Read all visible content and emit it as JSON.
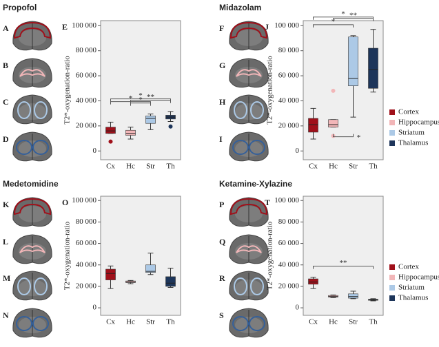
{
  "panels": [
    {
      "title": "Propofol",
      "image_labels": [
        "A",
        "B",
        "C",
        "D"
      ]
    },
    {
      "title": "Midazolam",
      "image_labels": [
        "F",
        "G",
        "H",
        "I"
      ]
    },
    {
      "title": "Medetomidine",
      "image_labels": [
        "K",
        "L",
        "M",
        "N"
      ]
    },
    {
      "title": "Ketamine-Xylazine",
      "image_labels": [
        "P",
        "Q",
        "R",
        "S"
      ]
    }
  ],
  "chart_data": [
    {
      "type": "box",
      "label": "E",
      "ylabel": "T2*-oxygenation-ratio",
      "categories": [
        "Cx",
        "Hc",
        "Str",
        "Th"
      ],
      "colors": [
        "#a0101a",
        "#f2b6b8",
        "#acc9e6",
        "#1d355a"
      ],
      "boxes": [
        {
          "min": 14000,
          "q1": 14000,
          "median": 16000,
          "q3": 19000,
          "max": 23000,
          "outliers": [
            7500
          ]
        },
        {
          "min": 9500,
          "q1": 12500,
          "median": 14000,
          "q3": 16500,
          "max": 19000,
          "outliers": []
        },
        {
          "min": 17000,
          "q1": 22000,
          "median": 26000,
          "q3": 28000,
          "max": 29500,
          "outliers": []
        },
        {
          "min": 23500,
          "q1": 25500,
          "median": 27000,
          "q3": 28500,
          "max": 31500,
          "outliers": [
            19500
          ]
        }
      ],
      "annotations": [
        {
          "pair": [
            0,
            3
          ],
          "label": "*"
        },
        {
          "pair": [
            1,
            3
          ],
          "label": "**"
        },
        {
          "pair": [
            0,
            2
          ],
          "label": "*"
        },
        {
          "pair": [
            1,
            2
          ],
          "label": "*"
        }
      ],
      "ylim": [
        -7000,
        104000
      ],
      "yticks": [
        0,
        {
          "value": 20000,
          "label": "20 000"
        },
        {
          "value": 40000,
          "label": "40 000"
        },
        {
          "value": 60000,
          "label": "60 000"
        },
        {
          "value": 80000,
          "label": "80 000"
        },
        {
          "value": 100000,
          "label": "100 000"
        }
      ]
    },
    {
      "type": "box",
      "label": "J",
      "ylabel": "T2*-oxygenation-ratio",
      "categories": [
        "Cx",
        "Hc",
        "Str",
        "Th"
      ],
      "colors": [
        "#a0101a",
        "#f2b6b8",
        "#acc9e6",
        "#1d355a"
      ],
      "boxes": [
        {
          "min": 9500,
          "q1": 15000,
          "median": 21000,
          "q3": 26000,
          "max": 34000,
          "outliers": []
        },
        {
          "min": 19000,
          "q1": 19000,
          "median": 21000,
          "q3": 25000,
          "max": 25000,
          "outliers": [
            12000,
            48000
          ]
        },
        {
          "min": 27000,
          "q1": 52000,
          "median": 58000,
          "q3": 91000,
          "max": 92000,
          "outliers": []
        },
        {
          "min": 47000,
          "q1": 50000,
          "median": 65000,
          "q3": 82000,
          "max": 97000,
          "outliers": []
        }
      ],
      "annotations": [
        {
          "pair": [
            0,
            3
          ],
          "label": "*"
        },
        {
          "pair": [
            1,
            3
          ],
          "label": "**"
        },
        {
          "pair": [
            0,
            2
          ],
          "label": "*"
        },
        {
          "pair": [
            1,
            2
          ],
          "label": "*",
          "below": true
        }
      ],
      "legend": [
        "Cortex",
        "Hippocampus",
        "Striatum",
        "Thalamus"
      ],
      "ylim": [
        -7000,
        104000
      ],
      "yticks": [
        0,
        {
          "value": 20000,
          "label": "20 000"
        },
        {
          "value": 40000,
          "label": "40 000"
        },
        {
          "value": 60000,
          "label": "60 000"
        },
        {
          "value": 80000,
          "label": "80 000"
        },
        {
          "value": 100000,
          "label": "100 000"
        }
      ]
    },
    {
      "type": "box",
      "label": "O",
      "ylabel": "T2*-oxygenation-ratio",
      "categories": [
        "Cx",
        "Hc",
        "Str",
        "Th"
      ],
      "colors": [
        "#a0101a",
        "#f2b6b8",
        "#acc9e6",
        "#1d355a"
      ],
      "boxes": [
        {
          "min": 18000,
          "q1": 26000,
          "median": 32000,
          "q3": 36000,
          "max": 39000,
          "outliers": []
        },
        {
          "min": 22500,
          "q1": 23500,
          "median": 24000,
          "q3": 25000,
          "max": 25500,
          "outliers": []
        },
        {
          "min": 31000,
          "q1": 33000,
          "median": 34000,
          "q3": 40000,
          "max": 51000,
          "outliers": []
        },
        {
          "min": 19000,
          "q1": 20000,
          "median": 23000,
          "q3": 29000,
          "max": 37000,
          "outliers": []
        }
      ],
      "annotations": [],
      "ylim": [
        -7000,
        104000
      ],
      "yticks": [
        0,
        {
          "value": 20000,
          "label": "20 000"
        },
        {
          "value": 40000,
          "label": "40 000"
        },
        {
          "value": 60000,
          "label": "60 000"
        },
        {
          "value": 80000,
          "label": "80 000"
        },
        {
          "value": 100000,
          "label": "100 000"
        }
      ]
    },
    {
      "type": "box",
      "label": "T",
      "ylabel": "T2*-oxygenation-ratio",
      "categories": [
        "Cx",
        "Hc",
        "Str",
        "Th"
      ],
      "colors": [
        "#a0101a",
        "#f2b6b8",
        "#acc9e6",
        "#1d355a"
      ],
      "boxes": [
        {
          "min": 18000,
          "q1": 22000,
          "median": 24000,
          "q3": 27000,
          "max": 28500,
          "outliers": []
        },
        {
          "min": 9500,
          "q1": 10000,
          "median": 10500,
          "q3": 11500,
          "max": 12000,
          "outliers": []
        },
        {
          "min": 8500,
          "q1": 9000,
          "median": 10500,
          "q3": 13000,
          "max": 15500,
          "outliers": []
        },
        {
          "min": 6500,
          "q1": 7000,
          "median": 7500,
          "q3": 8000,
          "max": 8500,
          "outliers": []
        }
      ],
      "annotations": [
        {
          "pair": [
            0,
            3
          ],
          "label": "**"
        }
      ],
      "legend": [
        "Cortex",
        "Hippocampus",
        "Striatum",
        "Thalamus"
      ],
      "ylim": [
        -7000,
        104000
      ],
      "yticks": [
        0,
        {
          "value": 20000,
          "label": "20 000"
        },
        {
          "value": 40000,
          "label": "40 000"
        },
        {
          "value": 60000,
          "label": "60 000"
        },
        {
          "value": 80000,
          "label": "80 000"
        },
        {
          "value": 100000,
          "label": "100 000"
        }
      ]
    }
  ]
}
